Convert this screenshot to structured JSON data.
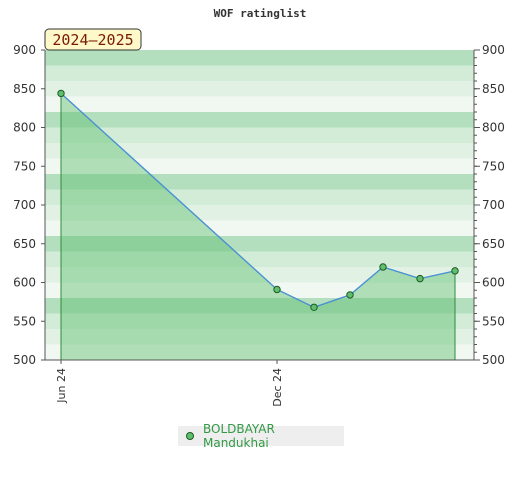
{
  "chart_data": {
    "type": "area",
    "title": "WOF ratinglist",
    "season_label": "2024–2025",
    "ylim": [
      500,
      900
    ],
    "y_ticks": [
      500,
      550,
      600,
      650,
      700,
      750,
      800,
      850,
      900
    ],
    "x_tick_labels": [
      "Jun 24",
      "Dec 24"
    ],
    "series": [
      {
        "name": "BOLDBAYAR Mandukhai",
        "values": [
          844,
          591,
          568,
          584,
          620,
          605,
          615
        ]
      }
    ],
    "grid": true,
    "legend_position": "bottom-center"
  },
  "colors": {
    "area_fill": "#5fbf6f",
    "line": "#4a90d9",
    "marker": "#5fbf6f",
    "season_bg": "#fff8c8"
  }
}
